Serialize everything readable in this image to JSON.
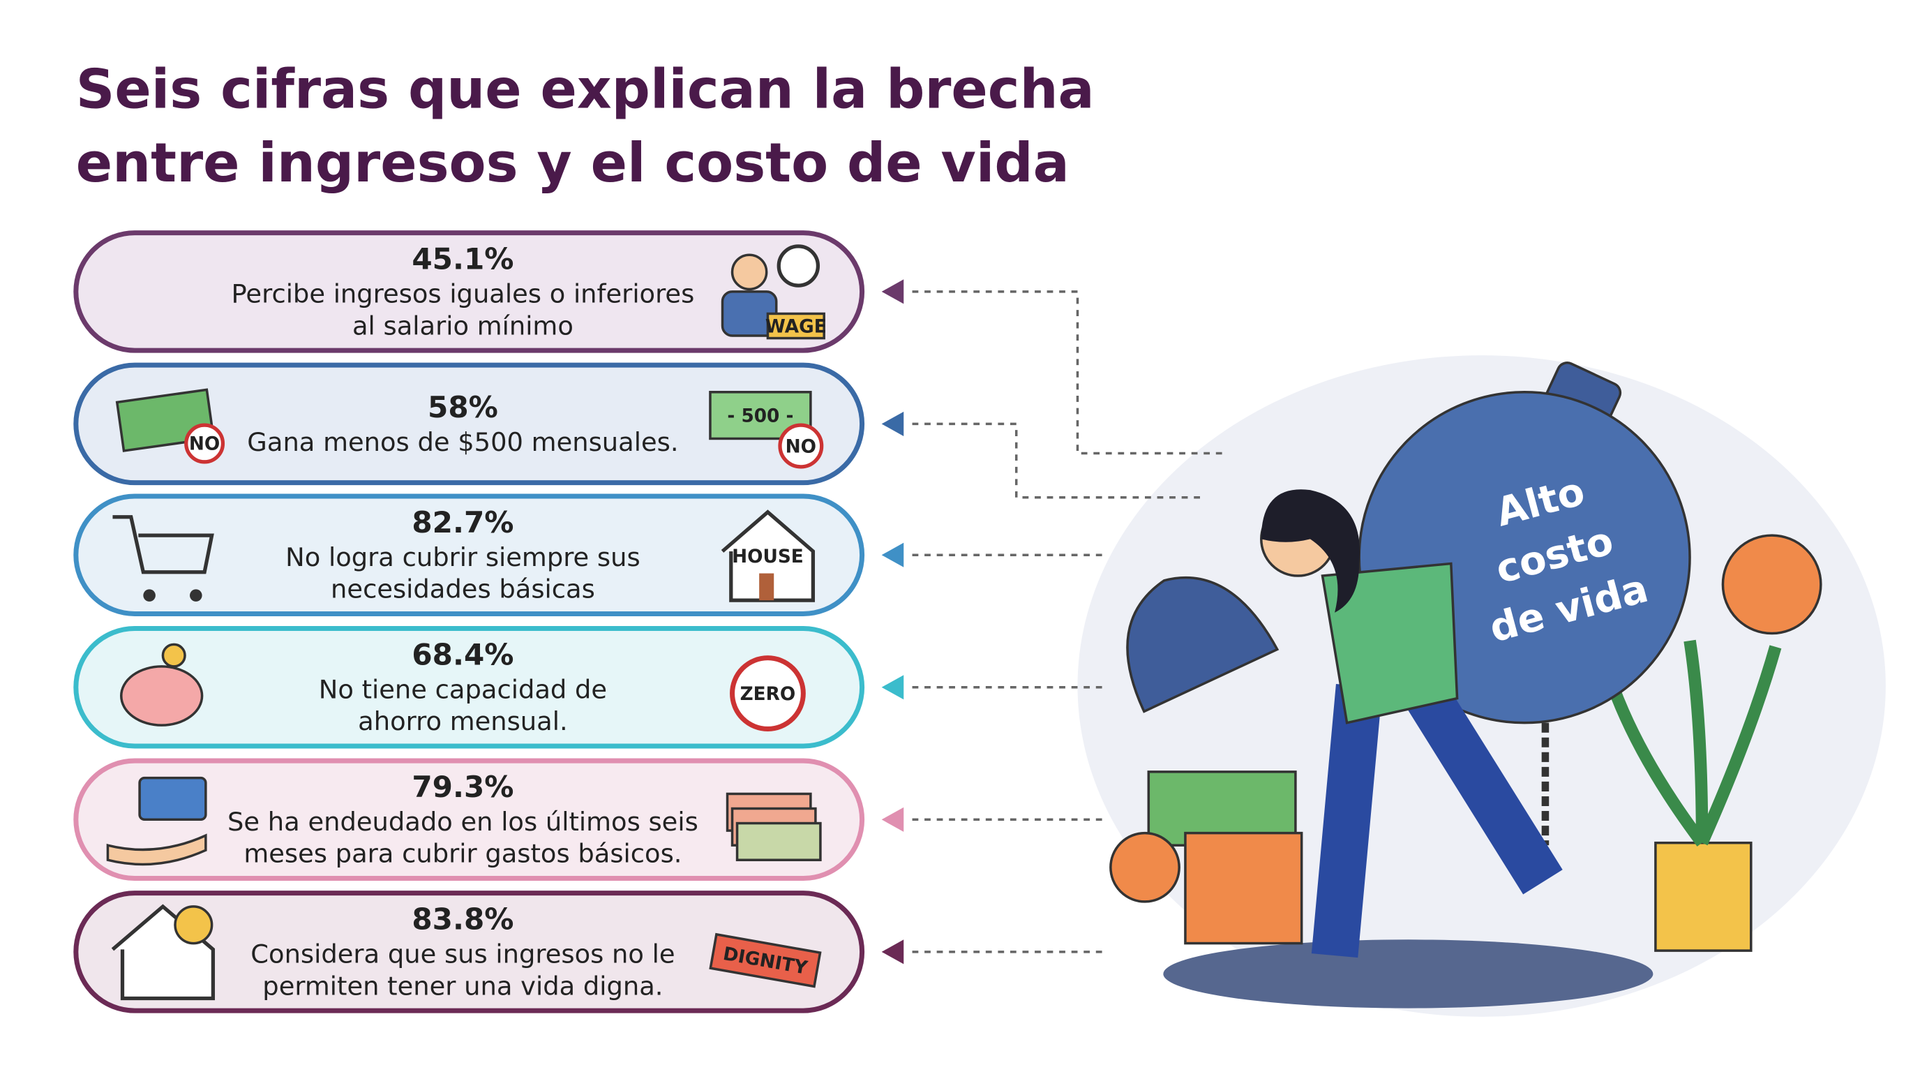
{
  "header": {
    "title": [
      "Seis cifras que explican la brecha",
      "entre ingresos y el costo de vida"
    ]
  },
  "items": [
    {
      "value": "45.1%",
      "text": [
        "Percibe ingresos iguales o inferiores",
        "al salario mínimo"
      ],
      "icon_labels": [
        "WAGE"
      ]
    },
    {
      "value": "58%",
      "text": [
        "Gana menos de $500 mensuales."
      ],
      "icon_labels": [
        "NO",
        "- 500 -",
        "NO"
      ]
    },
    {
      "value": "82.7%",
      "text": [
        "No logra cubrir siempre sus",
        "necesidades básicas"
      ],
      "icon_labels": [
        "HOUSE"
      ]
    },
    {
      "value": "68.4%",
      "text": [
        "No tiene capacidad de",
        "ahorro mensual."
      ],
      "icon_labels": [
        "ZERO"
      ]
    },
    {
      "value": "79.3%",
      "text": [
        "Se ha endeudado en los últimos seis",
        "meses para cubrir gastos básicos."
      ],
      "icon_labels": []
    },
    {
      "value": "83.8%",
      "text": [
        "Considera que sus ingresos no le",
        "permiten tener una vida digna."
      ],
      "icon_labels": [
        "DIGNITY"
      ]
    }
  ],
  "illustration": {
    "label": [
      "Alto",
      "costo",
      "de vida"
    ]
  }
}
